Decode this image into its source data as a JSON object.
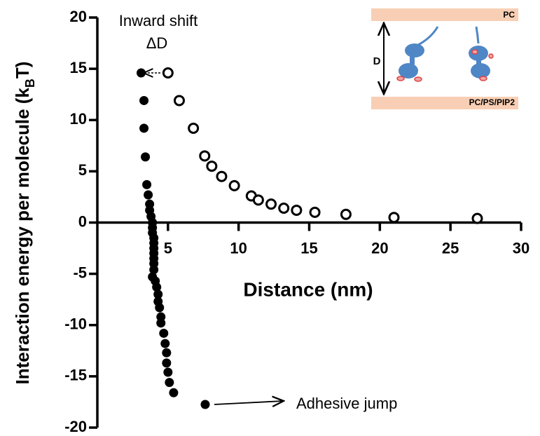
{
  "chart_data": {
    "type": "scatter",
    "x_label": "Distance (nm)",
    "y_label_parts": [
      "Interaction energy per molecule (k",
      "B",
      "T)"
    ],
    "xlim": [
      0,
      30
    ],
    "xticks": [
      5,
      10,
      15,
      20,
      25,
      30
    ],
    "ylim": [
      -20,
      20
    ],
    "yticks": [
      -20,
      -15,
      -10,
      -5,
      0,
      5,
      10,
      15,
      20
    ],
    "series": [
      {
        "color": "#000000",
        "filled": false,
        "x": [
          5,
          5.8,
          6.8,
          7.6,
          8.1,
          8.8,
          9.7,
          10.9,
          11.4,
          12.3,
          13.2,
          14.1,
          15.4,
          17.6,
          21,
          26.9
        ],
        "values": [
          14.6,
          11.9,
          9.2,
          6.5,
          5.5,
          4.5,
          3.6,
          2.6,
          2.2,
          1.8,
          1.4,
          1.2,
          1.0,
          0.8,
          0.5,
          0.4
        ]
      },
      {
        "color": "#000000",
        "filled": true,
        "x": [
          3.1,
          3.3,
          3.3,
          3.4,
          3.5,
          3.6,
          3.7,
          3.7,
          3.8,
          3.9,
          3.9,
          3.9,
          4,
          4,
          4,
          4,
          4,
          4,
          4,
          3.9,
          4.1,
          4.2,
          4.3,
          4.3,
          4.4,
          4.5,
          4.5,
          4.7,
          4.8,
          4.9,
          4.9,
          5,
          5.1,
          5.4
        ],
        "values": [
          14.6,
          11.9,
          9.2,
          6.4,
          3.7,
          2.7,
          1.8,
          1.2,
          0.6,
          0,
          -0.5,
          -1,
          -1.5,
          -2,
          -2.5,
          -3,
          -3.5,
          -4,
          -4.6,
          -5.3,
          -5.7,
          -6.3,
          -7,
          -7.7,
          -8.3,
          -9.2,
          -9.8,
          -10.8,
          -11.8,
          -12.7,
          -13.7,
          -14.6,
          -15.6,
          -16.6
        ]
      }
    ],
    "annotations": [
      "Inward shift",
      "ΔD",
      "Adhesive jump"
    ],
    "inset": {
      "top_label": "PC",
      "bottom_label": "PC/PS/PIP2",
      "gap_label": "D"
    }
  }
}
